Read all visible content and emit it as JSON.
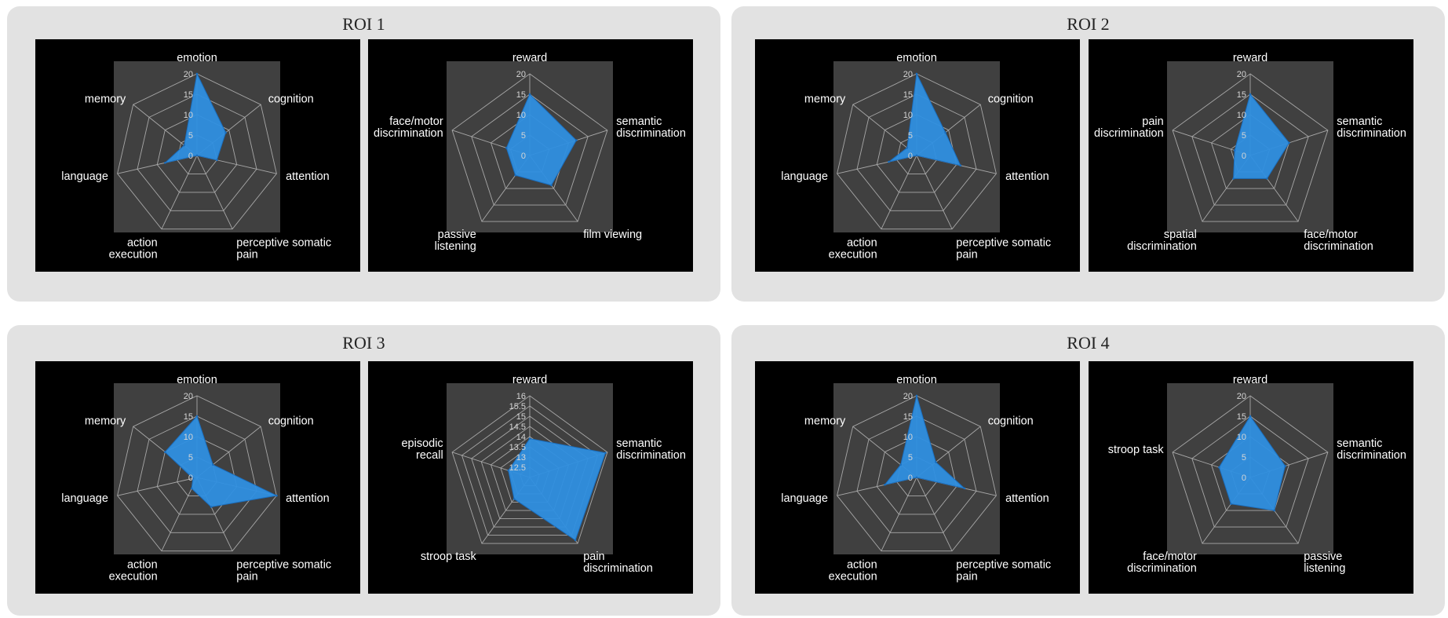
{
  "colors": {
    "panel_bg": "#e2e2e2",
    "chart_bg": "#000000",
    "plot_bg": "#404040",
    "grid": "#a8a8a8",
    "series_fill": "#2f8fe0"
  },
  "rois": [
    {
      "title": "ROI 1"
    },
    {
      "title": "ROI 2"
    },
    {
      "title": "ROI 3"
    },
    {
      "title": "ROI 4"
    }
  ],
  "chart_data": [
    {
      "roi": "ROI 1",
      "type": "radar",
      "categories": [
        "emotion",
        "cognition",
        "attention",
        "perceptive somatic pain",
        "action execution",
        "language",
        "memory"
      ],
      "ticks": [
        "0",
        "5",
        "10",
        "15",
        "20"
      ],
      "range": [
        0,
        20
      ],
      "values": [
        20,
        9,
        5,
        0,
        0,
        8,
        4
      ]
    },
    {
      "roi": "ROI 1",
      "type": "radar",
      "categories": [
        "reward",
        "semantic discrimination",
        "film viewing",
        "passive listening",
        "face/motor discrimination"
      ],
      "ticks": [
        "0",
        "5",
        "10",
        "15",
        "20"
      ],
      "range": [
        0,
        20
      ],
      "values": [
        15,
        12,
        9,
        6,
        6
      ]
    },
    {
      "roi": "ROI 2",
      "type": "radar",
      "categories": [
        "emotion",
        "cognition",
        "attention",
        "perceptive somatic pain",
        "action execution",
        "language",
        "memory"
      ],
      "ticks": [
        "0",
        "5",
        "10",
        "15",
        "20"
      ],
      "range": [
        0,
        20
      ],
      "values": [
        20,
        9,
        11,
        0,
        0,
        7,
        3
      ]
    },
    {
      "roi": "ROI 2",
      "type": "radar",
      "categories": [
        "reward",
        "semantic discrimination",
        "face/motor discrimination",
        "spatial discrimination",
        "pain discrimination"
      ],
      "ticks": [
        "0",
        "5",
        "10",
        "15",
        "20"
      ],
      "range": [
        0,
        20
      ],
      "values": [
        15,
        10,
        7,
        7,
        4
      ]
    },
    {
      "roi": "ROI 3",
      "type": "radar",
      "categories": [
        "emotion",
        "cognition",
        "attention",
        "perceptive somatic pain",
        "action execution",
        "language",
        "memory"
      ],
      "ticks": [
        "0",
        "5",
        "10",
        "15",
        "20"
      ],
      "range": [
        0,
        20
      ],
      "values": [
        15,
        5,
        20,
        8,
        3,
        1,
        10
      ]
    },
    {
      "roi": "ROI 3",
      "type": "radar",
      "categories": [
        "reward",
        "semantic discrimination",
        "pain discrimination",
        "stroop task",
        "episodic recall"
      ],
      "ticks": [
        "12.5",
        "13",
        "13.5",
        "14",
        "14.5",
        "15",
        "15.5",
        "16"
      ],
      "range": [
        12,
        16
      ],
      "values": [
        13.9,
        15.9,
        15.8,
        13.3,
        13.1
      ]
    },
    {
      "roi": "ROI 4",
      "type": "radar",
      "categories": [
        "emotion",
        "cognition",
        "attention",
        "perceptive somatic pain",
        "action execution",
        "language",
        "memory"
      ],
      "ticks": [
        "0",
        "5",
        "10",
        "15",
        "20"
      ],
      "range": [
        0,
        20
      ],
      "values": [
        20,
        6,
        12,
        0,
        0,
        8,
        5
      ]
    },
    {
      "roi": "ROI 4",
      "type": "radar",
      "categories": [
        "reward",
        "semantic discrimination",
        "passive listening",
        "face/motor discrimination",
        "stroop task"
      ],
      "ticks": [
        "0",
        "5",
        "10",
        "15",
        "20"
      ],
      "range": [
        0,
        20
      ],
      "values": [
        15,
        9,
        10,
        8,
        8
      ]
    }
  ]
}
